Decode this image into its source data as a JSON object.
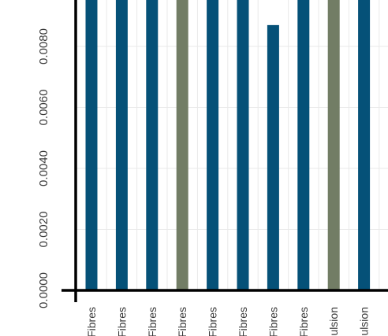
{
  "colors": {
    "primary": "#055178",
    "alternate": "#727d65",
    "axis": "#000000",
    "grid": "#e9e9e9",
    "background": "#ffffff"
  },
  "chart_data": {
    "type": "bar",
    "title": "",
    "xlabel": "",
    "ylabel": "",
    "grid": true,
    "ylim": [
      0,
      0.0096
    ],
    "yticks": [
      {
        "value": 0,
        "label": "0.0000"
      },
      {
        "value": 0.002,
        "label": "0.0020"
      },
      {
        "value": 0.004,
        "label": "0.0040"
      },
      {
        "value": 0.006,
        "label": "0.0060"
      },
      {
        "value": 0.008,
        "label": "0.0080"
      }
    ],
    "categories": [
      "Fibres",
      "Fibres",
      "Fibres",
      "Fibres",
      "Fibres",
      "Fibres",
      "Fibres",
      "Fibres",
      "ulsion",
      "ulsion"
    ],
    "values": [
      0.0096,
      0.0096,
      0.0096,
      0.0096,
      0.0096,
      0.0096,
      0.0087,
      0.0096,
      0.0096,
      0.0096
    ],
    "bar_colors": [
      "primary",
      "primary",
      "primary",
      "alternate",
      "primary",
      "primary",
      "primary",
      "primary",
      "alternate",
      "primary"
    ]
  }
}
